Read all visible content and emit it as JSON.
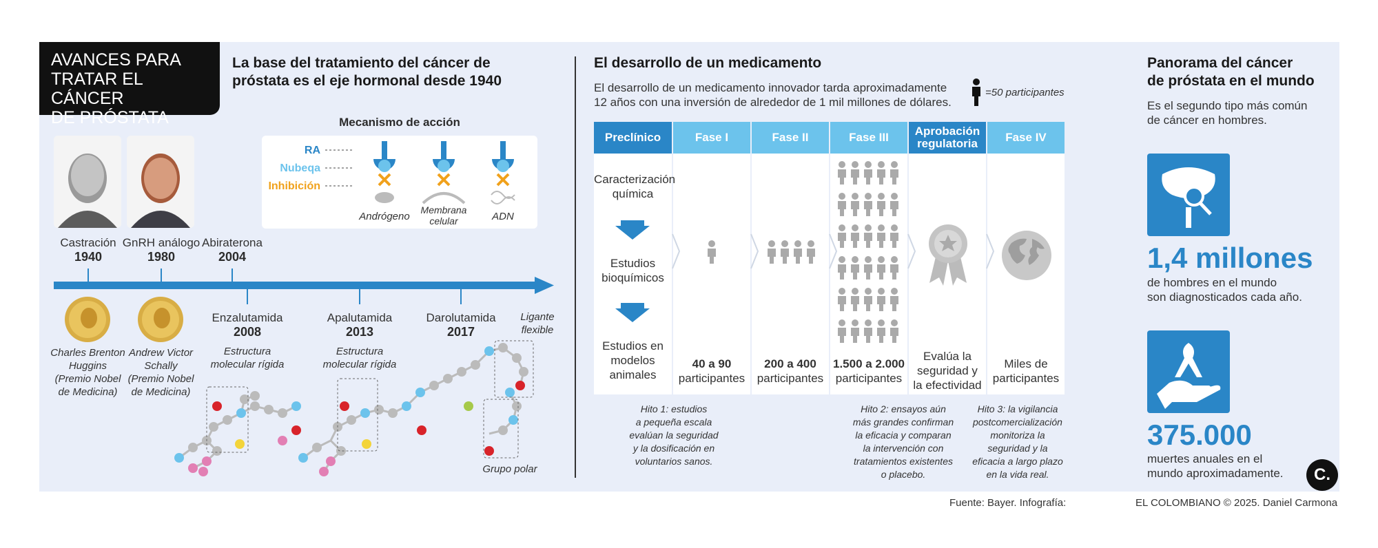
{
  "header": {
    "title_lines": [
      "AVANCES PARA",
      "TRATAR EL CÁNCER",
      "DE PRÓSTATA"
    ],
    "section1_title": [
      "La base del tratamiento del cáncer de",
      "próstata es el eje hormonal desde 1940"
    ],
    "section2_title": "El desarrollo de un medicamento",
    "section3_title": [
      "Panorama del cáncer",
      "de próstata en el mundo"
    ]
  },
  "mechanism": {
    "title": "Mecanismo de acción",
    "legend": [
      "RA",
      "Nubeqa",
      "Inhibición"
    ],
    "targets": [
      "Andrógeno",
      "Membrana celular",
      "ADN"
    ],
    "colors": {
      "ra": "#2a86c7",
      "nubeqa": "#6cc3ec",
      "inhibicion": "#f0a11b"
    }
  },
  "timeline_top": [
    {
      "label": "Castración",
      "year": "1940"
    },
    {
      "label": "GnRH análogo",
      "year": "1980"
    },
    {
      "label": "Abiraterona",
      "year": "2004"
    }
  ],
  "nobel": [
    {
      "name": "Charles Brenton",
      "name2": "Huggins",
      "note": "(Premio Nobel",
      "note2": "de Medicina)"
    },
    {
      "name": "Andrew Victor",
      "name2": "Schally",
      "note": "(Premio Nobel",
      "note2": "de Medicina)"
    }
  ],
  "timeline_bottom": [
    {
      "label": "Enzalutamida",
      "year": "2008",
      "desc": [
        "Estructura",
        "molecular rígida"
      ]
    },
    {
      "label": "Apalutamida",
      "year": "2013",
      "desc": [
        "Estructura",
        "molecular rígida"
      ]
    },
    {
      "label": "Darolutamida",
      "year": "2017",
      "desc": []
    }
  ],
  "molecule_labels": {
    "ligante": [
      "Ligante",
      "flexible"
    ],
    "polar": "Grupo polar"
  },
  "development": {
    "intro": [
      "El desarrollo de un medicamento innovador tarda aproximadamente",
      "12 años con una inversión de alrededor de 1 mil millones de dólares."
    ],
    "legend_unit": "=50 participantes",
    "phases": [
      "Preclínico",
      "Fase I",
      "Fase II",
      "Fase III",
      "Aprobación regulatoria",
      "Fase IV"
    ],
    "preclinical_steps": [
      "Caracterización química",
      "Estudios bioquímicos",
      "Estudios en modelos animales"
    ],
    "participants": [
      "40 a 90",
      "200 a 400",
      "1.500 a 2.000",
      "",
      "Miles de"
    ],
    "participants_suffix": [
      "participantes",
      "participantes",
      "participantes",
      "",
      "participantes"
    ],
    "approval_text": [
      "Evalúa la",
      "seguridad y",
      "la efectividad"
    ],
    "milestones": [
      [
        "Hito 1: estudios",
        "a pequeña escala",
        "evalúan la seguridad",
        "y la dosificación en",
        "voluntarios sanos."
      ],
      [
        "Hito 2: ensayos aún",
        "más grandes confirman",
        "la eficacia y comparan",
        "la intervención con",
        "tratamientos existentes",
        "o placebo."
      ],
      [
        "Hito 3: la vigilancia",
        "postcomercialización",
        "monitoriza la",
        "seguridad y la",
        "eficacia a largo plazo",
        "en la vida real."
      ]
    ]
  },
  "panorama": {
    "intro": [
      "Es el segundo tipo más común",
      "de cáncer en hombres."
    ],
    "stat1": "1,4 millones",
    "stat1_desc": [
      "de hombres en el mundo",
      "son diagnosticados cada año."
    ],
    "stat2": "375.000",
    "stat2_desc": [
      "muertes anuales en el",
      "mundo aproximadamente."
    ],
    "accent": "#2a86c7"
  },
  "footer": {
    "source": "Fuente: Bayer. Infografía:",
    "credit": "EL COLOMBIANO © 2025. Daniel Carmona",
    "logo": "C."
  }
}
